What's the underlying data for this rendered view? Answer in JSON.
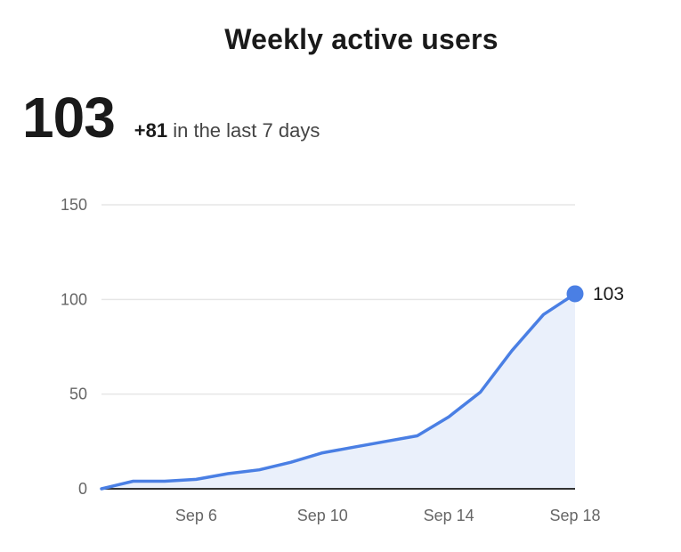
{
  "header": {
    "title": "Weekly active users"
  },
  "summary": {
    "value": "103",
    "delta": "+81",
    "delta_suffix": " in the last 7 days"
  },
  "colors": {
    "line": "#4a7fe4",
    "area": "#eaf0fb",
    "grid": "#e6e6e6",
    "axis": "#333333"
  },
  "chart_data": {
    "type": "area",
    "title": "Weekly active users",
    "xlabel": "",
    "ylabel": "",
    "ylim": [
      0,
      150
    ],
    "yticks": [
      0,
      50,
      100,
      150
    ],
    "grid": true,
    "legend": "none",
    "x": [
      "Sep 3",
      "Sep 4",
      "Sep 5",
      "Sep 6",
      "Sep 7",
      "Sep 8",
      "Sep 9",
      "Sep 10",
      "Sep 11",
      "Sep 12",
      "Sep 13",
      "Sep 14",
      "Sep 15",
      "Sep 16",
      "Sep 17",
      "Sep 18"
    ],
    "xticks": [
      "Sep 6",
      "Sep 10",
      "Sep 14",
      "Sep 18"
    ],
    "values": [
      0,
      4,
      4,
      5,
      8,
      10,
      14,
      19,
      22,
      25,
      28,
      38,
      51,
      73,
      92,
      103
    ],
    "end_label": "103"
  }
}
